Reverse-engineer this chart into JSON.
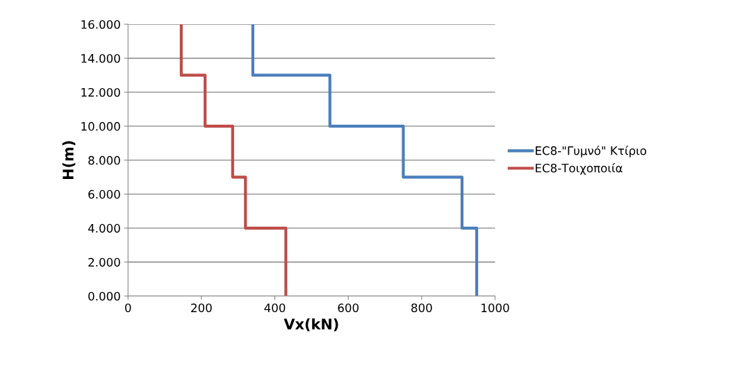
{
  "chart_data": {
    "type": "line",
    "xlabel": "Vx(kN)",
    "ylabel": "H(m)",
    "xlim": [
      0,
      1000
    ],
    "xticks": [
      0,
      200,
      400,
      600,
      800,
      1000
    ],
    "ylim": [
      0,
      16
    ],
    "yticks": [
      {
        "value": 0,
        "label": "0.000"
      },
      {
        "value": 2,
        "label": "2.000"
      },
      {
        "value": 4,
        "label": "4.000"
      },
      {
        "value": 6,
        "label": "6.000"
      },
      {
        "value": 8,
        "label": "8.000"
      },
      {
        "value": 10,
        "label": "10.000"
      },
      {
        "value": 12,
        "label": "12.000"
      },
      {
        "value": 14,
        "label": "14.000"
      },
      {
        "value": 16,
        "label": "16.000"
      }
    ],
    "grid": "y",
    "legend": "right",
    "marker": "none",
    "line_style": "solid",
    "series": [
      {
        "name": "EC8-\"Γυμνό\" Κτίριο",
        "color": "#4a7ebb",
        "x": [
          950,
          950,
          910,
          910,
          750,
          750,
          550,
          550,
          340,
          340
        ],
        "values": [
          0,
          4,
          4,
          7,
          7,
          10,
          10,
          13,
          13,
          16
        ]
      },
      {
        "name": "EC8-Τοιχοποιία",
        "color": "#be4b48",
        "x": [
          430,
          430,
          320,
          320,
          285,
          285,
          210,
          210,
          145,
          145
        ],
        "values": [
          0,
          4,
          4,
          7,
          7,
          10,
          10,
          13,
          13,
          16
        ]
      }
    ]
  }
}
